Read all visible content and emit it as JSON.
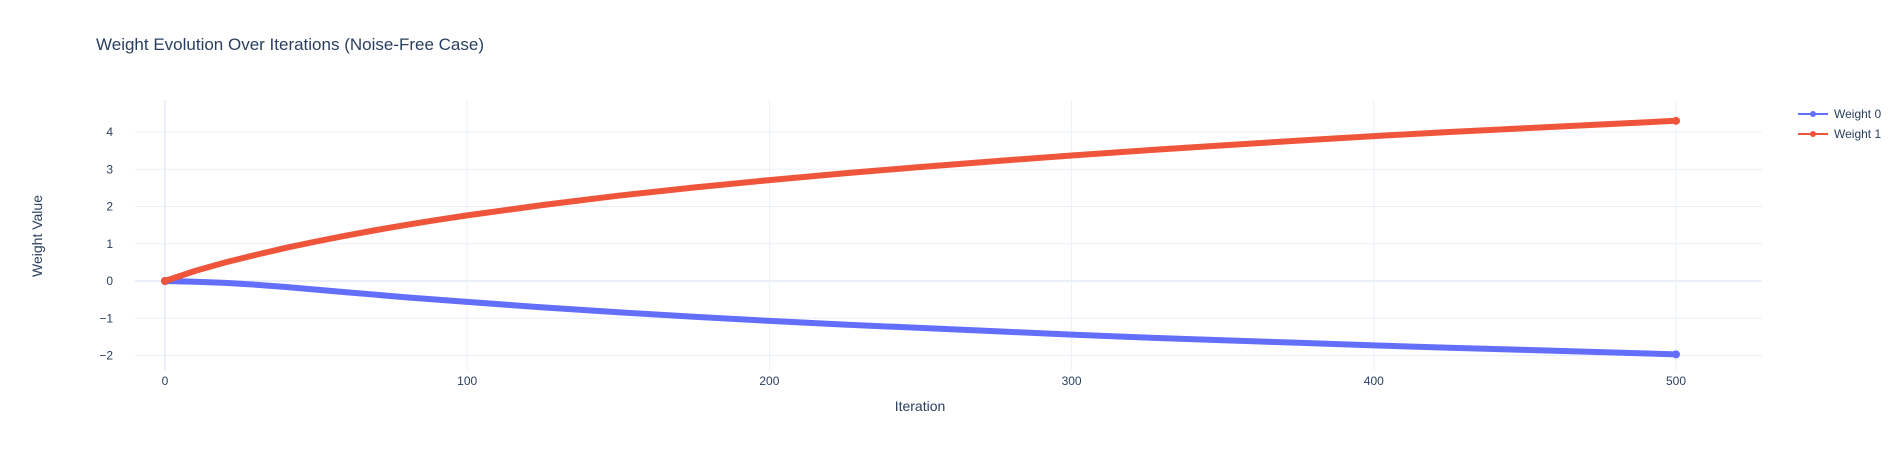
{
  "chart_data": {
    "type": "line",
    "title": "Weight Evolution Over Iterations (Noise-Free Case)",
    "xlabel": "Iteration",
    "ylabel": "Weight Value",
    "xlim": [
      -25,
      530
    ],
    "ylim": [
      -2.5,
      4.9
    ],
    "xticks": [
      0,
      100,
      200,
      300,
      400,
      500
    ],
    "yticks": [
      -2,
      -1,
      0,
      1,
      2,
      3,
      4
    ],
    "ytick_labels": [
      "−2",
      "−1",
      "0",
      "1",
      "2",
      "3",
      "4"
    ],
    "grid": true,
    "legend_position": "top-right",
    "x": [
      0,
      10,
      20,
      30,
      40,
      50,
      60,
      70,
      80,
      90,
      100,
      125,
      150,
      175,
      200,
      225,
      250,
      275,
      300,
      325,
      350,
      375,
      400,
      425,
      450,
      475,
      500
    ],
    "series": [
      {
        "name": "Weight 0",
        "color": "#636efa",
        "values": [
          0,
          -0.02,
          -0.05,
          -0.1,
          -0.16,
          -0.23,
          -0.3,
          -0.37,
          -0.44,
          -0.5,
          -0.56,
          -0.71,
          -0.84,
          -0.96,
          -1.07,
          -1.17,
          -1.26,
          -1.35,
          -1.44,
          -1.52,
          -1.59,
          -1.66,
          -1.73,
          -1.79,
          -1.85,
          -1.91,
          -1.97
        ]
      },
      {
        "name": "Weight 1",
        "color": "#ef553b",
        "values": [
          0,
          0.27,
          0.5,
          0.7,
          0.89,
          1.06,
          1.22,
          1.37,
          1.51,
          1.64,
          1.76,
          2.04,
          2.29,
          2.51,
          2.71,
          2.89,
          3.06,
          3.22,
          3.37,
          3.51,
          3.64,
          3.77,
          3.89,
          4.0,
          4.1,
          4.2,
          4.3
        ]
      }
    ]
  }
}
